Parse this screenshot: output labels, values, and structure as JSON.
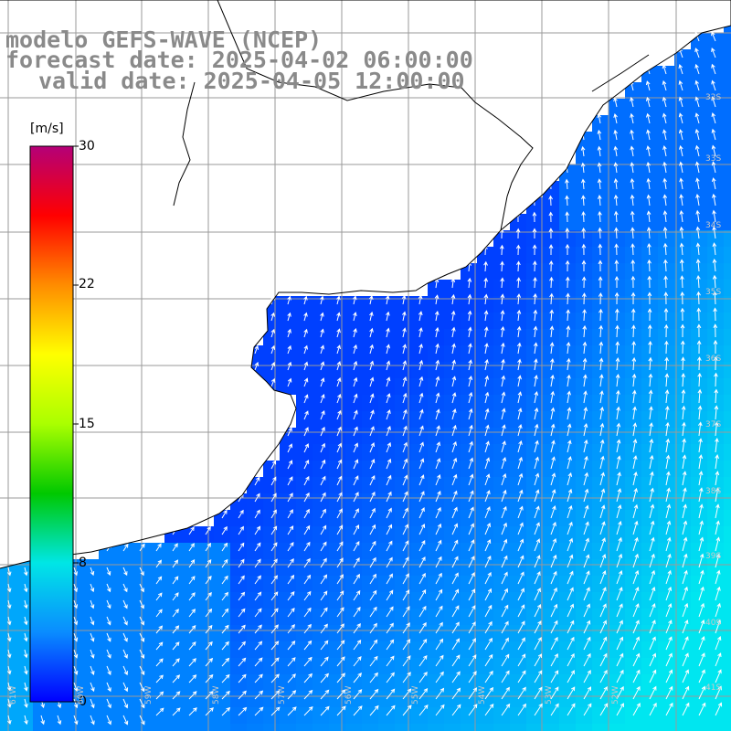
{
  "title": {
    "model": "modelo GEFS-WAVE (NCEP)",
    "forecast": "forecast date: 2025-04-02 06:00:00",
    "valid": "valid date: 2025-04-05 12:00:00"
  },
  "colorbar": {
    "unit": "[m/s]",
    "ticks": [
      {
        "label": "30",
        "value": 30
      },
      {
        "label": "22",
        "value": 22
      },
      {
        "label": "15",
        "value": 15
      },
      {
        "label": "8",
        "value": 8
      },
      {
        "label": "0",
        "value": 0
      }
    ],
    "colors": [
      "#0000ff",
      "#0a8cff",
      "#00e6e6",
      "#00c800",
      "#aaff00",
      "#ffff00",
      "#ff8c00",
      "#ff0000",
      "#b40078"
    ]
  },
  "map": {
    "lon_labels": [
      "61W",
      "60W",
      "59W",
      "58W",
      "57W",
      "56W",
      "55W",
      "54W",
      "53W",
      "52W"
    ],
    "lat_labels": [
      "32S",
      "33S",
      "34S",
      "35S",
      "36S",
      "37S",
      "38S",
      "39S",
      "40S",
      "41S"
    ],
    "land_color": "#ffffff",
    "grid_color": "#9a9a9a",
    "arrow_color": "#ffffff",
    "coast_color": "#000000"
  }
}
